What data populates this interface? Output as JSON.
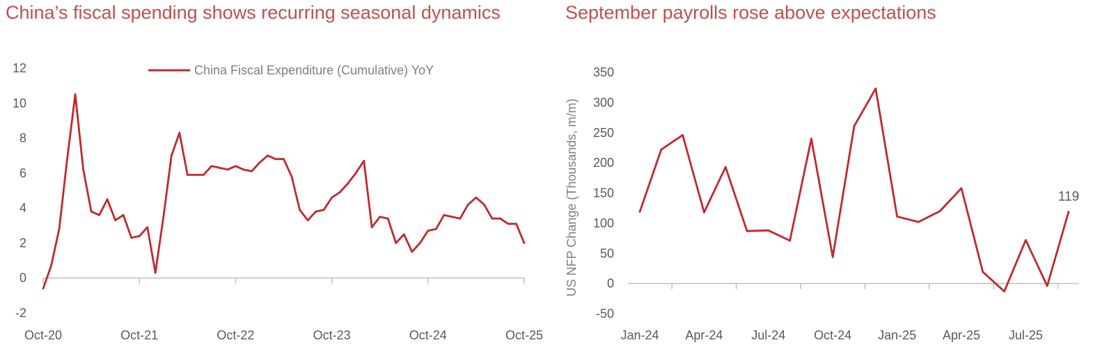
{
  "titles": {
    "left": "China’s fiscal spending shows recurring seasonal dynamics",
    "right": "September payrolls rose above expectations"
  },
  "colors": {
    "series": "#c0282d",
    "title": "#c0504d",
    "axis": "#bfbfbf"
  },
  "chart_data": [
    {
      "type": "line",
      "title": "China’s fiscal spending shows recurring seasonal dynamics",
      "x_start": "Oct-20",
      "x_tick_labels": [
        "Oct-20",
        "Oct-21",
        "Oct-22",
        "Oct-23",
        "Oct-24",
        "Oct-25"
      ],
      "y_tick_labels": [
        "12",
        "10",
        "8",
        "6",
        "4",
        "2",
        "0",
        "-2"
      ],
      "ylim": [
        -2,
        12
      ],
      "legend": {
        "label": "China Fiscal Expenditure (Cumulative) YoY",
        "placement": "top-center"
      },
      "series": [
        {
          "name": "China Fiscal Expenditure (Cumulative) YoY",
          "values": [
            -0.6,
            0.7,
            2.8,
            6.8,
            10.5,
            6.2,
            3.8,
            3.6,
            4.5,
            3.3,
            3.6,
            2.3,
            2.4,
            2.9,
            0.3,
            3.5,
            7.0,
            8.3,
            5.9,
            5.9,
            5.9,
            6.4,
            6.3,
            6.2,
            6.4,
            6.2,
            6.1,
            6.6,
            7.0,
            6.8,
            6.8,
            5.8,
            3.9,
            3.3,
            3.8,
            3.9,
            4.6,
            4.9,
            5.4,
            6.0,
            6.7,
            2.9,
            3.5,
            3.4,
            2.0,
            2.5,
            1.5,
            2.0,
            2.7,
            2.8,
            3.6,
            3.5,
            3.4,
            4.2,
            4.6,
            4.2,
            3.4,
            3.4,
            3.1,
            3.1,
            2.0
          ]
        }
      ]
    },
    {
      "type": "line",
      "title": "September payrolls rose above expectations",
      "ylabel": "US NFP Change (Thousands, m/m)",
      "x_start": "Jan-24",
      "x_tick_labels": [
        "Jan-24",
        "Apr-24",
        "Jul-24",
        "Oct-24",
        "Jan-25",
        "Apr-25",
        "Jul-25"
      ],
      "y_tick_labels": [
        "350",
        "300",
        "250",
        "200",
        "150",
        "100",
        "50",
        "0",
        "-50"
      ],
      "ylim": [
        -50,
        350
      ],
      "series": [
        {
          "values": [
            119,
            222,
            246,
            118,
            193,
            87,
            88,
            71,
            240,
            44,
            261,
            323,
            111,
            102,
            120,
            158,
            19,
            -13,
            72,
            -4,
            119
          ]
        }
      ],
      "data_labels": [
        {
          "index": 20,
          "text": "119"
        }
      ]
    }
  ]
}
